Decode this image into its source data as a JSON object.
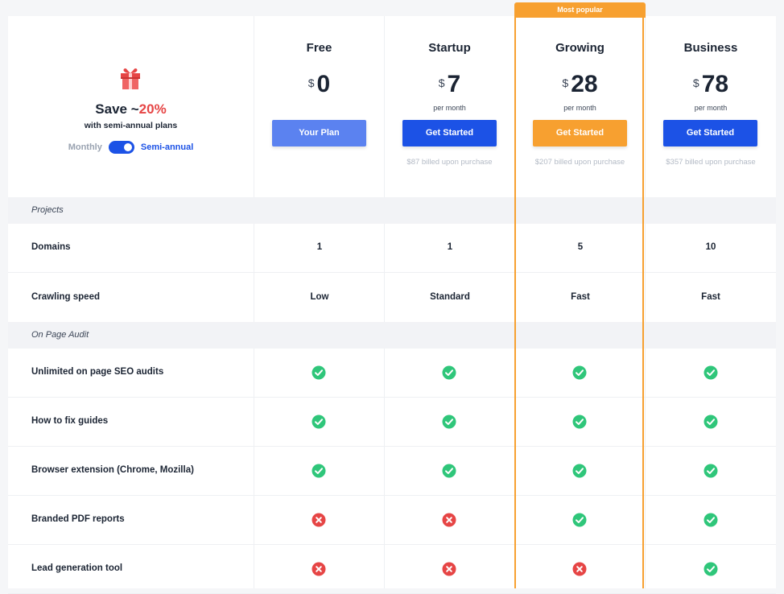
{
  "promo": {
    "save_prefix": "Save ~",
    "save_pct": "20%",
    "subtitle": "with semi-annual plans",
    "toggle_off_label": "Monthly",
    "toggle_on_label": "Semi-annual",
    "toggle_state": "semi-annual",
    "gift_icon": "gift-icon"
  },
  "popular_badge": "Most popular",
  "plans": [
    {
      "name": "Free",
      "currency": "$",
      "price": "0",
      "per": "",
      "button": "Your Plan",
      "button_color": "#5b82f0",
      "billed": ""
    },
    {
      "name": "Startup",
      "currency": "$",
      "price": "7",
      "per": "per month",
      "button": "Get Started",
      "button_color": "#1c52e6",
      "billed": "$87 billed upon purchase"
    },
    {
      "name": "Growing",
      "currency": "$",
      "price": "28",
      "per": "per month",
      "button": "Get Started",
      "button_color": "#f7a030",
      "billed": "$207 billed upon purchase"
    },
    {
      "name": "Business",
      "currency": "$",
      "price": "78",
      "per": "per month",
      "button": "Get Started",
      "button_color": "#1c52e6",
      "billed": "$357 billed upon purchase"
    }
  ],
  "sections": [
    {
      "title": "Projects",
      "rows": [
        {
          "label": "Domains",
          "type": "text",
          "values": [
            "1",
            "1",
            "5",
            "10"
          ]
        },
        {
          "label": "Crawling speed",
          "type": "text",
          "values": [
            "Low",
            "Standard",
            "Fast",
            "Fast"
          ]
        }
      ]
    },
    {
      "title": "On Page Audit",
      "rows": [
        {
          "label": "Unlimited on page SEO audits",
          "type": "check",
          "values": [
            true,
            true,
            true,
            true
          ]
        },
        {
          "label": "How to fix guides",
          "type": "check",
          "values": [
            true,
            true,
            true,
            true
          ]
        },
        {
          "label": "Browser extension (Chrome, Mozilla)",
          "type": "check",
          "values": [
            true,
            true,
            true,
            true
          ]
        },
        {
          "label": "Branded PDF reports",
          "type": "check",
          "values": [
            false,
            false,
            true,
            true
          ]
        },
        {
          "label": "Lead generation tool",
          "type": "check",
          "values": [
            false,
            false,
            false,
            true
          ]
        }
      ]
    }
  ],
  "colors": {
    "check": "#2fc67a",
    "cross": "#e64545",
    "accent": "#1c52e6",
    "popular": "#f7a030"
  }
}
